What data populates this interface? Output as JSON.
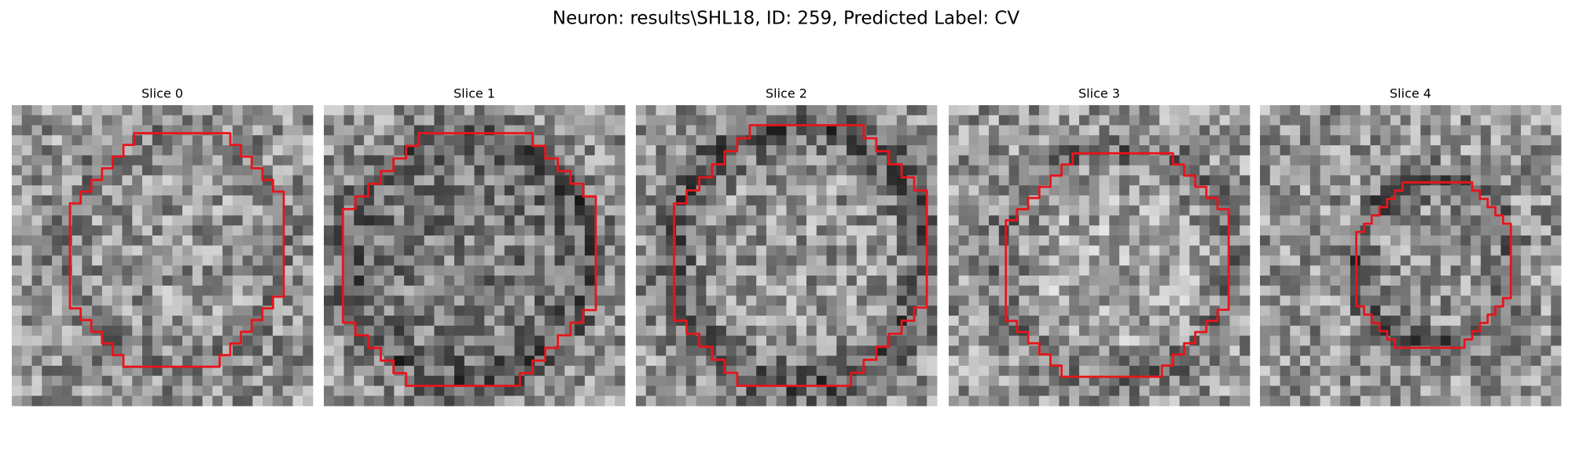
{
  "title": "Neuron: results\\SHL18, ID: 259, Predicted Label: CV",
  "panels": [
    {
      "title": "Slice 0"
    },
    {
      "title": "Slice 1"
    },
    {
      "title": "Slice 2"
    },
    {
      "title": "Slice 3"
    },
    {
      "title": "Slice 4"
    }
  ]
}
